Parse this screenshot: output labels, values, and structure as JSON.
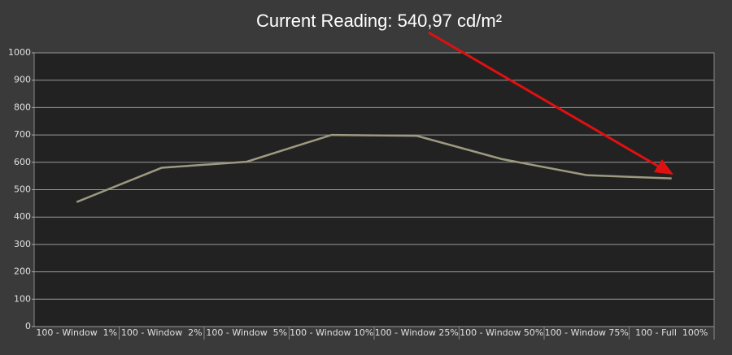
{
  "chart_data": {
    "type": "line",
    "title": "Current Reading: 540,97 cd/m²",
    "categories": [
      "100 - Window  1%",
      "100 - Window  2%",
      "100 - Window  5%",
      "100 - Window 10%",
      "100 - Window 25%",
      "100 - Window 50%",
      "100 - Window 75%",
      "100 - Full  100%"
    ],
    "values": [
      455,
      580,
      602,
      700,
      697,
      612,
      553,
      541
    ],
    "color": "#9c9a80",
    "ylim": [
      0,
      1000
    ],
    "yticks": [
      0,
      100,
      200,
      300,
      400,
      500,
      600,
      700,
      800,
      900,
      1000
    ],
    "grid": true
  }
}
